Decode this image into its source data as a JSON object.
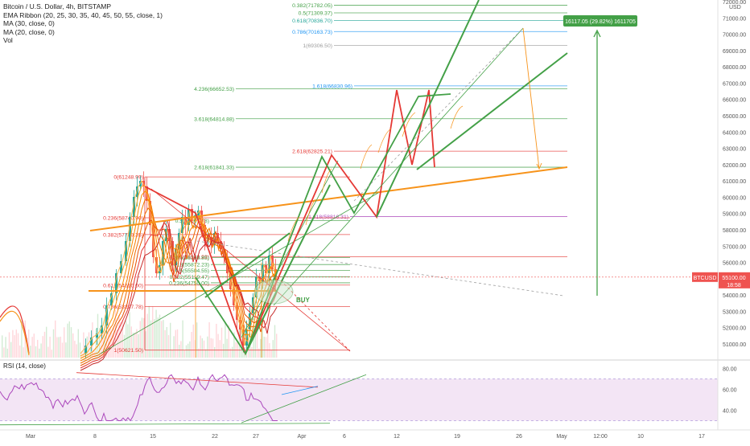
{
  "legend": {
    "symbol": "Bitcoin / U.S. Dollar, 4h, BITSTAMP",
    "ema": "EMA Ribbon (20, 25, 30, 35, 40, 45, 50, 55, close, 1)",
    "ma30": "MA (30, close, 0)",
    "ma20": "MA (20, close, 0)",
    "vol": "Vol"
  },
  "rsi_label": "RSI (14, close)",
  "price_badge": {
    "symbol": "BTCUSD",
    "price": "55100.00",
    "countdown": "18:58"
  },
  "measure_label": "16117.05 (29.82%) 1611705",
  "buy_label": "BUY",
  "colors": {
    "green": "#43a047",
    "red": "#e53935",
    "orange": "#f7931a",
    "purple": "#ab47bc",
    "blue": "#2962ff"
  },
  "chart_data": {
    "type": "candlestick",
    "title": "Bitcoin / U.S. Dollar, 4h, BITSTAMP",
    "currency": "USD",
    "ylim": [
      49500,
      72700
    ],
    "y_ticks": [
      51000,
      52000,
      53000,
      54000,
      55000,
      56000,
      57000,
      58000,
      59000,
      60000,
      61000,
      62000,
      63000,
      64000,
      65000,
      66000,
      67000,
      68000,
      69000,
      70000,
      71000,
      72000
    ],
    "y_tick_labels": [
      "51000.00",
      "52000.00",
      "53000.00",
      "54000.00",
      "55000.00",
      "56000.00",
      "57000.00",
      "58000.00",
      "59000.00",
      "60000.00",
      "61000.00",
      "62000.00",
      "63000.00",
      "64000.00",
      "65000.00",
      "66000.00",
      "67000.00",
      "68000.00",
      "69000.00",
      "70000.00",
      "71000.00",
      "72000.00"
    ],
    "x_tick_labels": [
      "Mar",
      "8",
      "15",
      "22",
      "27",
      "Apr",
      "6",
      "12",
      "19",
      "26",
      "May",
      "12:00",
      "10",
      "17"
    ],
    "last_price": 55100,
    "fib_levels": [
      {
        "label": "0.382(71782.05)",
        "y": 71782.05,
        "color": "green"
      },
      {
        "label": "0.5(71309.37)",
        "y": 71309.37,
        "color": "green"
      },
      {
        "label": "0.618(70836.70)",
        "y": 70836.7,
        "color": "teal"
      },
      {
        "label": "0.786(70163.73)",
        "y": 70163.73,
        "color": "blue"
      },
      {
        "label": "1(69306.50)",
        "y": 69306.5,
        "color": "gray"
      },
      {
        "label": "1.618(66830.96)",
        "y": 66830.96,
        "color": "blue"
      },
      {
        "label": "4.236(66652.53)",
        "y": 66652.53,
        "color": "green"
      },
      {
        "label": "3.618(64814.88)",
        "y": 64814.88,
        "color": "green"
      },
      {
        "label": "2.618(62825.21)",
        "y": 62825.21,
        "color": "red"
      },
      {
        "label": "2.618(61841.33)",
        "y": 61841.33,
        "color": "green"
      },
      {
        "label": "0(61248.99)",
        "y": 61248.99,
        "color": "red"
      },
      {
        "label": "1.618(58816.31)",
        "y": 58816.31,
        "color": "purple"
      },
      {
        "label": "0.236(58740.90)",
        "y": 58740.9,
        "color": "red"
      },
      {
        "label": "0.5(58567.78)",
        "y": 58567.78,
        "color": "green"
      },
      {
        "label": "0.382(57709.35)",
        "y": 57709.35,
        "color": "red"
      },
      {
        "label": "4.236(56343.93)",
        "y": 56343.93,
        "color": "red"
      },
      {
        "label": "0.786(56303.85)",
        "y": 56303.85,
        "color": "green"
      },
      {
        "label": "0.618(55872.23)",
        "y": 55872.23,
        "color": "green"
      },
      {
        "label": "0.5(55504.55)",
        "y": 55504.55,
        "color": "green"
      },
      {
        "label": "0.382(55119.47)",
        "y": 55119.47,
        "color": "green"
      },
      {
        "label": "0.236(54750.00)",
        "y": 54750.0,
        "color": "green"
      },
      {
        "label": "0.618(54610.00)",
        "y": 54610.0,
        "color": "red"
      },
      {
        "label": "0.786(53297.78)",
        "y": 53297.78,
        "color": "red"
      },
      {
        "label": "1(50621.50)",
        "y": 50621.5,
        "color": "red"
      }
    ],
    "rsi": {
      "label": "RSI (14, close)",
      "ylim": [
        25,
        85
      ],
      "ticks": [
        40,
        60,
        80
      ],
      "tick_labels": [
        "40.00",
        "60.00",
        "80.00"
      ],
      "band": [
        30,
        70
      ]
    }
  }
}
